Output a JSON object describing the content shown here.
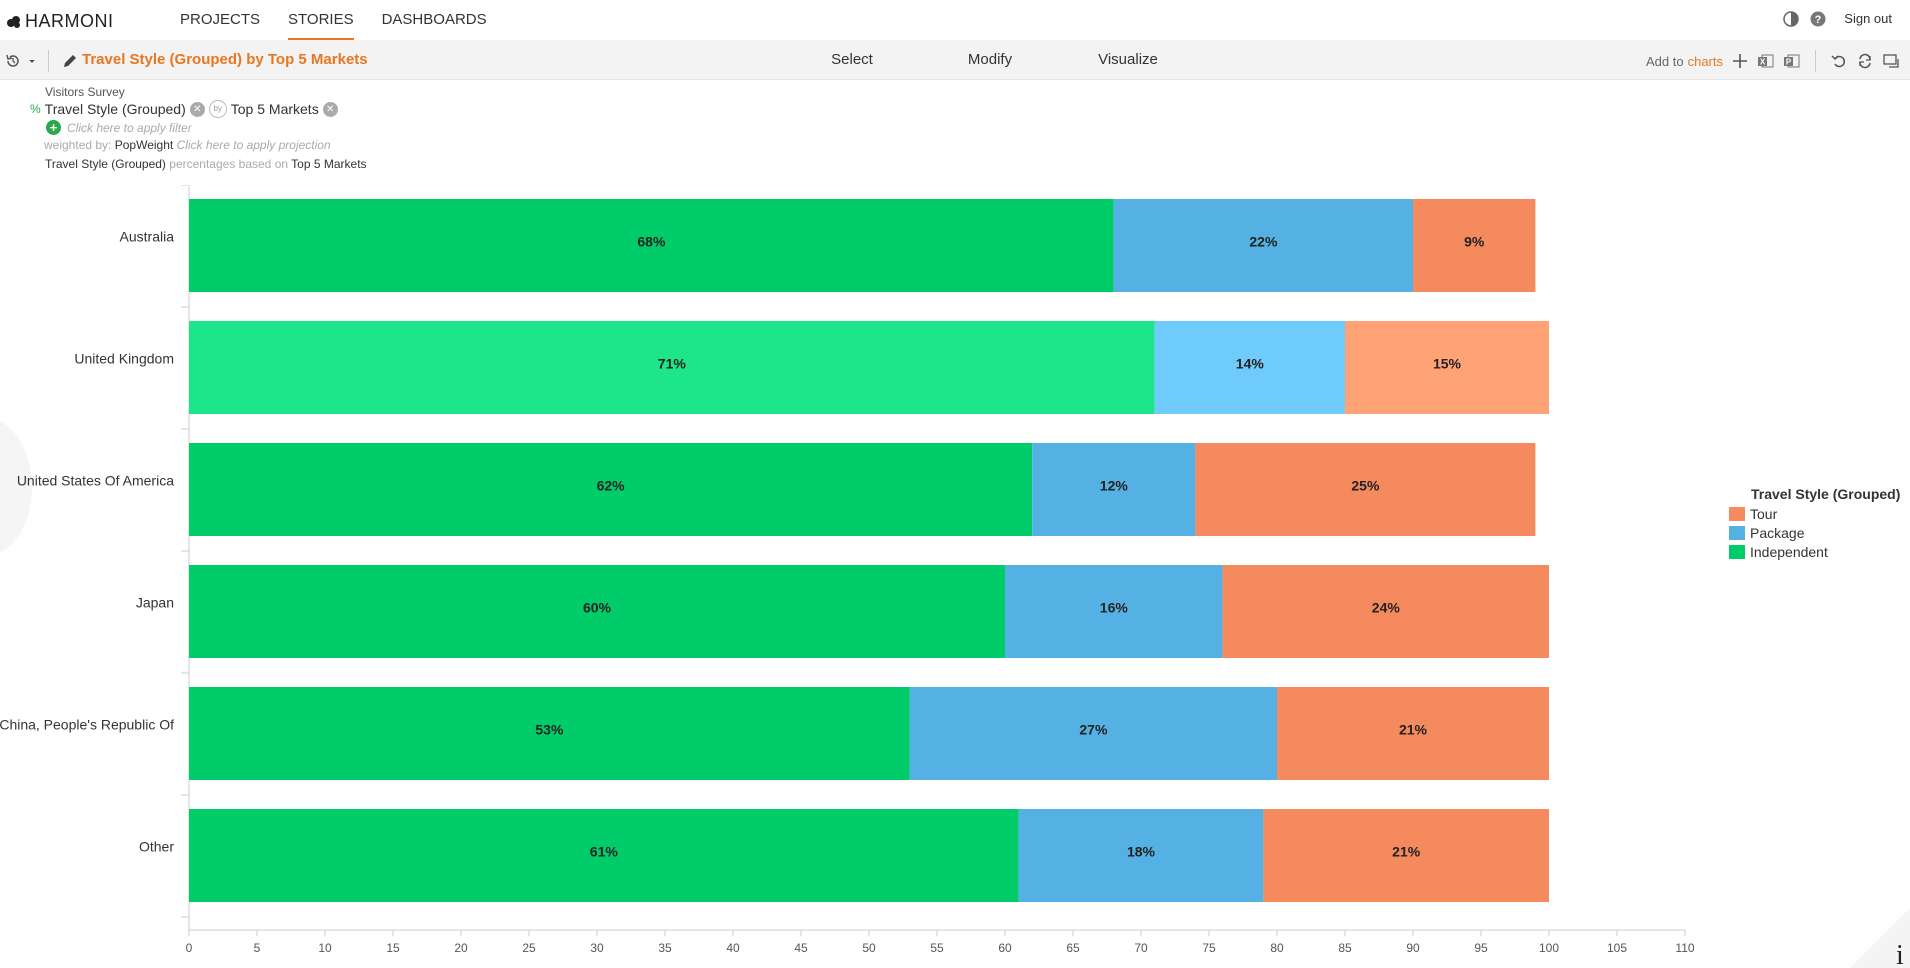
{
  "app": {
    "logo_text": "HARMONI",
    "nav_tabs": [
      "PROJECTS",
      "STORIES",
      "DASHBOARDS"
    ],
    "active_tab": "STORIES",
    "sign_out": "Sign out"
  },
  "toolbar": {
    "story_title": "Travel Style (Grouped) by Top 5 Markets",
    "modes": [
      "Select",
      "Modify",
      "Visualize"
    ],
    "add_to_prefix": "Add to",
    "add_to_target": "charts"
  },
  "info": {
    "dataset": "Visitors Survey",
    "pct_symbol": "%",
    "row_variable": "Travel Style (Grouped)",
    "by_label": "by",
    "column_variable": "Top 5 Markets",
    "filter_hint": "Click here to apply filter",
    "weighted_by_label": "weighted by:",
    "weight_variable": "PopWeight",
    "projection_hint": "Click here to apply projection",
    "basis_variable": "Travel Style (Grouped)",
    "basis_text": "percentages based on",
    "basis_base": "Top 5 Markets"
  },
  "chart_data": {
    "type": "bar",
    "orientation": "horizontal",
    "stacked": true,
    "categories": [
      "Australia",
      "United Kingdom",
      "United States Of America",
      "Japan",
      "China, People's Republic Of",
      "Other"
    ],
    "series": [
      {
        "name": "Independent",
        "color": "#00cc6a",
        "values": [
          68,
          71,
          62,
          60,
          53,
          61
        ],
        "labels": [
          "68%",
          "71%",
          "62%",
          "60%",
          "53%",
          "61%"
        ]
      },
      {
        "name": "Package",
        "color": "#55b1e3",
        "values": [
          22,
          14,
          12,
          16,
          27,
          18
        ],
        "labels": [
          "22%",
          "14%",
          "12%",
          "16%",
          "27%",
          "18%"
        ]
      },
      {
        "name": "Tour",
        "color": "#f58a5f",
        "values": [
          9,
          15,
          25,
          24,
          21,
          21
        ],
        "labels": [
          "9%",
          "15%",
          "25%",
          "24%",
          "21%",
          "21%"
        ]
      }
    ],
    "highlighted_category": "United Kingdom",
    "highlight_colors": [
      "#1de68a",
      "#6ecbfb",
      "#ffa276"
    ],
    "xlim": [
      0,
      110
    ],
    "xticks": [
      0,
      5,
      10,
      15,
      20,
      25,
      30,
      35,
      40,
      45,
      50,
      55,
      60,
      65,
      70,
      75,
      80,
      85,
      90,
      95,
      100,
      105,
      110
    ],
    "grid": false,
    "legend": {
      "title": "Travel Style (Grouped)",
      "position": "right",
      "entries": [
        {
          "name": "Tour",
          "color": "#f58a5f"
        },
        {
          "name": "Package",
          "color": "#55b1e3"
        },
        {
          "name": "Independent",
          "color": "#00cc6a"
        }
      ]
    }
  }
}
